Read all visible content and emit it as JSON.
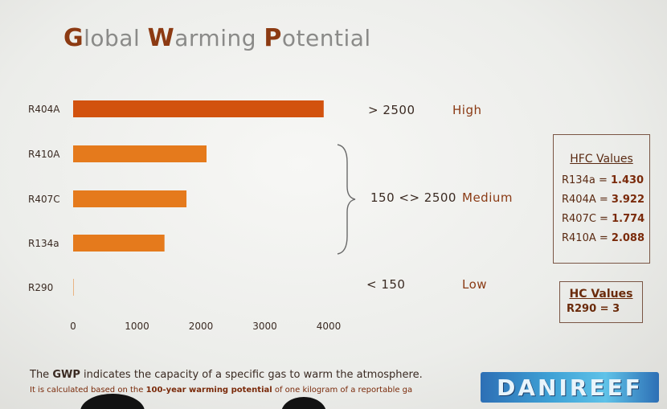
{
  "title": {
    "c1": "G",
    "t1": "lobal ",
    "c2": "W",
    "t2": "arming ",
    "c3": "P",
    "t3": "otential"
  },
  "chart_data": {
    "type": "bar",
    "orientation": "horizontal",
    "title": "Global Warming Potential",
    "categories": [
      "R404A",
      "R410A",
      "R407C",
      "R134a",
      "R290"
    ],
    "values": [
      3922,
      2088,
      1774,
      1430,
      3
    ],
    "xlim": [
      0,
      4000
    ],
    "xticks": [
      "0",
      "1000",
      "2000",
      "3000",
      "4000"
    ],
    "grid": false,
    "colors": [
      "#d2520e",
      "#e57a1c",
      "#e57a1c",
      "#e57a1c",
      "#e57a1c"
    ]
  },
  "annotations": {
    "high_range": "> 2500",
    "high_label": "High",
    "medium_range": "150 <> 2500",
    "medium_label": "Medium",
    "low_range": "< 150",
    "low_label": "Low"
  },
  "hfc_box": {
    "heading": "HFC Values",
    "rows": [
      {
        "name": "R134a = ",
        "value": "1.430"
      },
      {
        "name": "R404A = ",
        "value": "3.922"
      },
      {
        "name": "R407C = ",
        "value": "1.774"
      },
      {
        "name": "R410A = ",
        "value": "2.088"
      }
    ]
  },
  "hc_box": {
    "heading": "HC Values",
    "value": "R290 = 3"
  },
  "footer": {
    "l1_a": "The ",
    "l1_b": "GWP",
    "l1_c": " indicates the capacity of a specific gas to warm the atmosphere.",
    "l2_a": "It is calculated based on the ",
    "l2_b": "100-year warming potential",
    "l2_c": " of one kilogram of a reportable ga"
  },
  "watermark": "DANIREEF"
}
